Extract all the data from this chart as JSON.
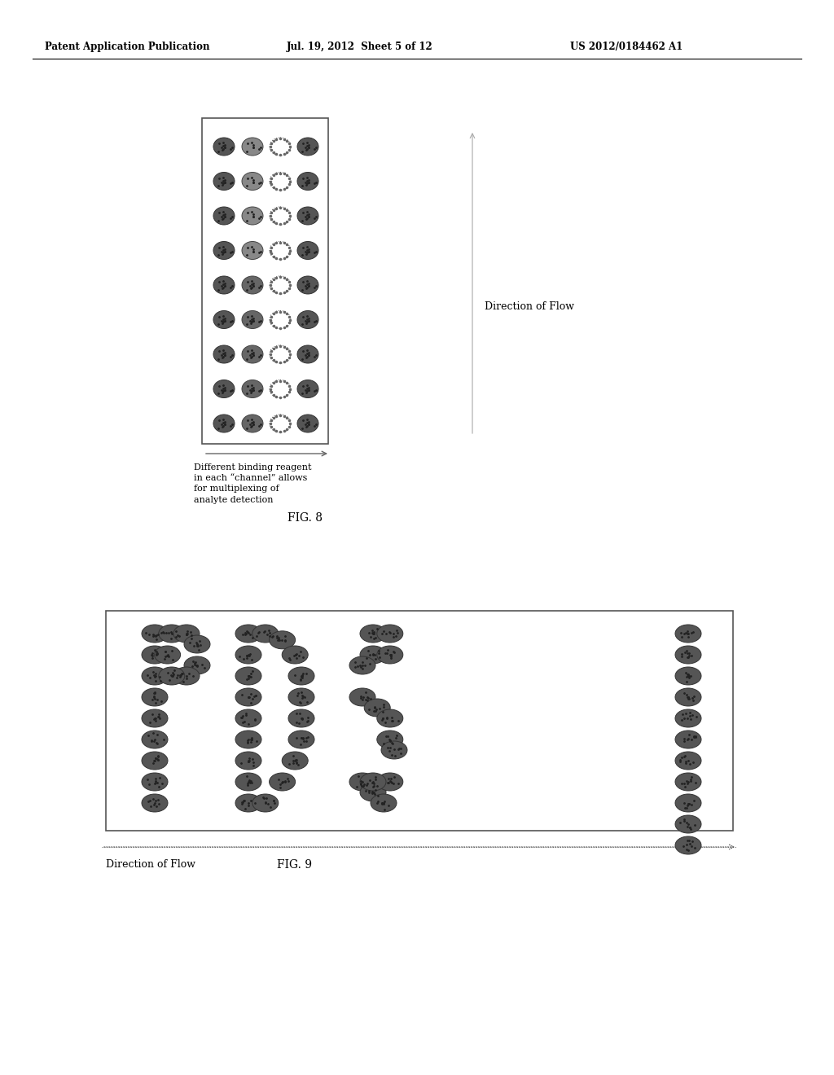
{
  "bg_color": "#ffffff",
  "header_text": "Patent Application Publication",
  "header_date": "Jul. 19, 2012  Sheet 5 of 12",
  "header_patent": "US 2012/0184462 A1",
  "fig8_label": "FIG. 8",
  "fig8_caption": "Different binding reagent\nin each “channel” allows\nfor multiplexing of\nanalyte detection",
  "fig8_flow_label": "Direction of Flow",
  "fig9_label": "FIG. 9",
  "fig9_flow_label": "Direction of Flow",
  "oval_dark": "#555555",
  "oval_mid": "#888888",
  "oval_light": "#bbbbbb",
  "oval_edge": "#333333"
}
